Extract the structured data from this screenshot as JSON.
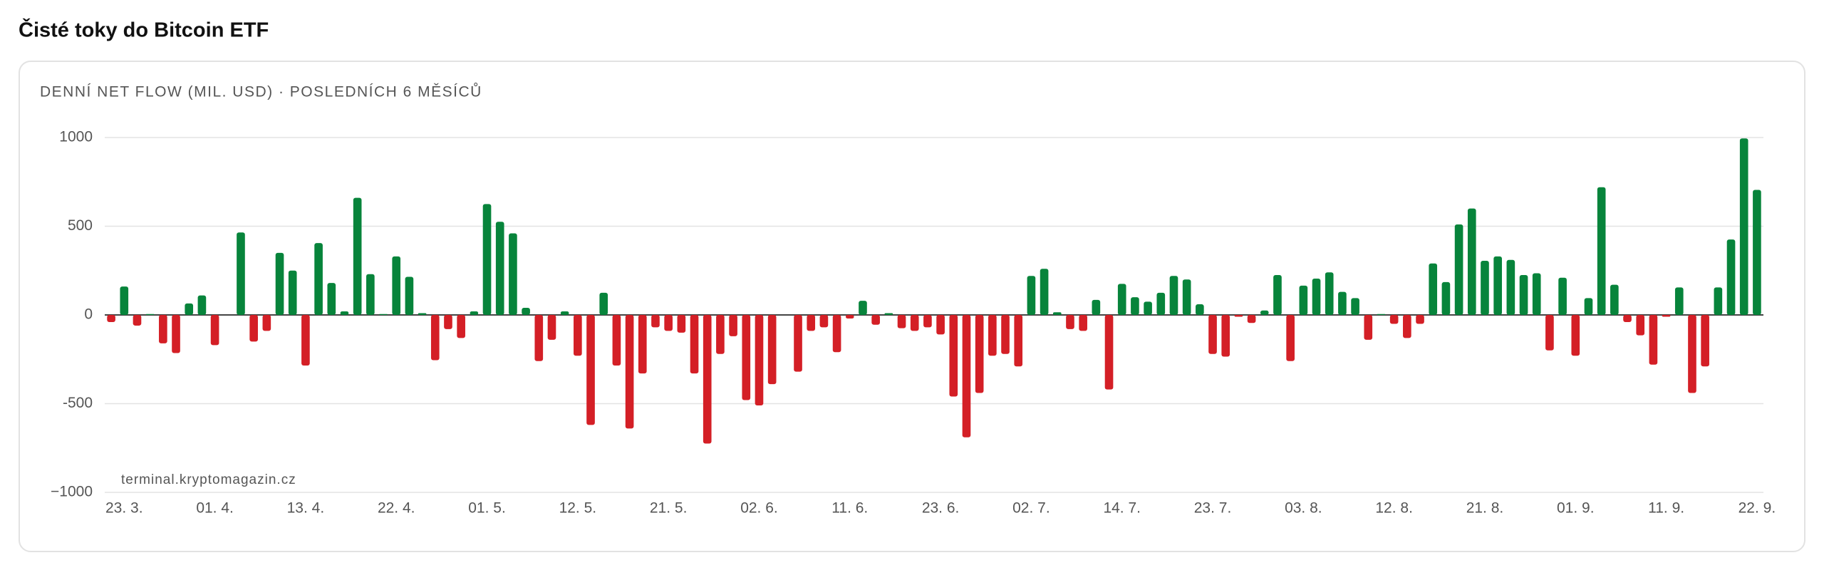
{
  "chart_data": {
    "type": "bar",
    "title": "Čisté toky do Bitcoin ETF",
    "subtitle": "DENNÍ NET FLOW (MIL. USD) · POSLEDNÍCH 6 MĚSÍCŮ",
    "watermark": "terminal.kryptomagazin.cz",
    "categories": [
      null,
      "23. 3.",
      null,
      null,
      null,
      null,
      null,
      null,
      "01. 4.",
      null,
      null,
      null,
      null,
      null,
      null,
      "13. 4.",
      null,
      null,
      null,
      null,
      null,
      null,
      "22. 4.",
      null,
      null,
      null,
      null,
      null,
      null,
      "01. 5.",
      null,
      null,
      null,
      null,
      null,
      null,
      "12. 5.",
      null,
      null,
      null,
      null,
      null,
      null,
      "21. 5.",
      null,
      null,
      null,
      null,
      null,
      null,
      "02. 6.",
      null,
      null,
      null,
      null,
      null,
      null,
      "11. 6.",
      null,
      null,
      null,
      null,
      null,
      null,
      "23. 6.",
      null,
      null,
      null,
      null,
      null,
      null,
      "02. 7.",
      null,
      null,
      null,
      null,
      null,
      null,
      "14. 7.",
      null,
      null,
      null,
      null,
      null,
      null,
      "23. 7.",
      null,
      null,
      null,
      null,
      null,
      null,
      "03. 8.",
      null,
      null,
      null,
      null,
      null,
      null,
      "12. 8.",
      null,
      null,
      null,
      null,
      null,
      null,
      "21. 8.",
      null,
      null,
      null,
      null,
      null,
      null,
      "01. 9.",
      null,
      null,
      null,
      null,
      null,
      null,
      "11. 9.",
      null,
      null,
      null,
      null,
      null,
      null,
      "22. 9."
    ],
    "values": [
      -40,
      160,
      -60,
      5,
      -160,
      -215,
      65,
      110,
      -170,
      0,
      465,
      -150,
      -90,
      350,
      250,
      -285,
      405,
      180,
      20,
      660,
      230,
      5,
      330,
      215,
      10,
      -255,
      -80,
      -130,
      20,
      625,
      525,
      460,
      40,
      -260,
      -140,
      20,
      -230,
      -620,
      125,
      -285,
      -640,
      -330,
      -70,
      -90,
      -100,
      -330,
      -725,
      -220,
      -120,
      -480,
      -510,
      -390,
      0,
      -320,
      -90,
      -70,
      -210,
      -20,
      80,
      -55,
      10,
      -75,
      -90,
      -70,
      -110,
      -460,
      -690,
      -440,
      -230,
      -220,
      -290,
      220,
      260,
      15,
      -80,
      -90,
      85,
      -420,
      175,
      100,
      75,
      125,
      220,
      200,
      60,
      -220,
      -235,
      -10,
      -45,
      25,
      225,
      -260,
      165,
      205,
      240,
      130,
      95,
      -140,
      5,
      -50,
      -130,
      -50,
      290,
      185,
      510,
      600,
      305,
      330,
      310,
      225,
      235,
      -200,
      210,
      -230,
      95,
      720,
      170,
      -40,
      -115,
      -280,
      -10,
      155,
      -440,
      -290,
      155,
      425,
      995,
      705
    ],
    "positive_color": "#07843b",
    "negative_color": "#d41f26",
    "ylim": [
      -1000,
      1000
    ],
    "yticks": [
      {
        "value": -1000,
        "label": "−1000"
      },
      {
        "value": -500,
        "label": "-500"
      },
      0,
      500,
      1000
    ],
    "grid": true
  }
}
